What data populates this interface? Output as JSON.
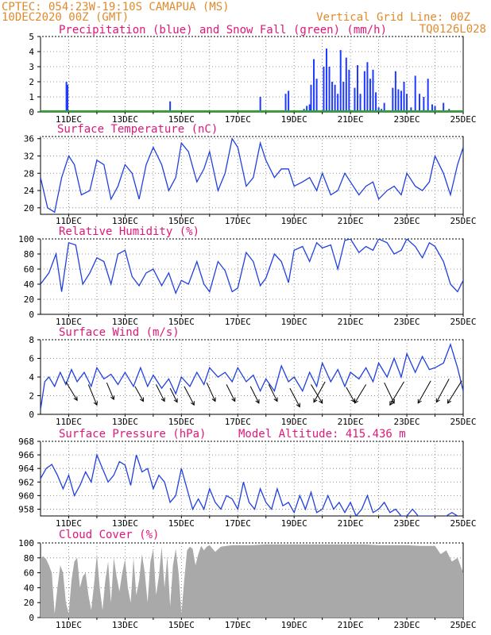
{
  "header": {
    "station_line": "CPTEC:  054:23W-19:10S  CAMAPUA (MS)",
    "date_line": "10DEC2020 00Z (GMT)",
    "grid_note": "Vertical Grid Line: 00Z",
    "code": "TQ0126L028"
  },
  "x_axis": {
    "labels": [
      "11DEC",
      "13DEC",
      "15DEC",
      "17DEC",
      "19DEC",
      "21DEC",
      "23DEC",
      "25DEC"
    ],
    "start_day": 10,
    "end_day": 25
  },
  "colors": {
    "precip": "#1f3bff",
    "snow": "#22aa22",
    "line": "#2040e0",
    "cloud": "#a9a9a9",
    "wind_arrow": "#000000"
  },
  "chart_data": [
    {
      "id": "precip",
      "type": "bar",
      "title": "Precipitation (blue) and Snow Fall (green) (mm/h)",
      "ylim": [
        0,
        5
      ],
      "yticks": [
        0,
        1,
        2,
        3,
        4,
        5
      ],
      "bar_width_days": 0.03,
      "x": [
        10.92,
        10.96,
        14.6,
        17.8,
        18.7,
        18.8,
        19.35,
        19.45,
        19.55,
        19.6,
        19.7,
        19.8,
        20.05,
        20.15,
        20.25,
        20.35,
        20.45,
        20.55,
        20.65,
        20.75,
        20.85,
        20.95,
        21.15,
        21.25,
        21.35,
        21.5,
        21.6,
        21.7,
        21.8,
        21.9,
        22.0,
        22.1,
        22.2,
        22.5,
        22.6,
        22.7,
        22.8,
        22.9,
        23.0,
        23.15,
        23.3,
        23.45,
        23.6,
        23.75,
        23.9,
        24.0,
        24.3,
        24.5
      ],
      "values": [
        2.0,
        1.8,
        0.7,
        1.0,
        1.2,
        1.4,
        0.2,
        0.4,
        0.5,
        1.8,
        3.5,
        2.2,
        3.0,
        4.2,
        3.0,
        2.0,
        1.8,
        1.2,
        4.1,
        2.0,
        3.6,
        2.8,
        1.6,
        3.1,
        1.2,
        2.7,
        3.3,
        2.2,
        2.8,
        1.3,
        0.3,
        0.2,
        0.6,
        1.6,
        2.7,
        1.5,
        1.4,
        2.0,
        1.2,
        0.3,
        2.4,
        1.2,
        1.0,
        2.2,
        0.5,
        0.4,
        0.6,
        0.2
      ],
      "snow": 0
    },
    {
      "id": "temp",
      "type": "line",
      "title": "Surface Temperature (nC)",
      "ylim": [
        18.5,
        36.5
      ],
      "yticks": [
        20,
        24,
        28,
        32,
        36
      ],
      "x": [
        10.0,
        10.25,
        10.5,
        10.75,
        11.0,
        11.2,
        11.45,
        11.75,
        12.0,
        12.25,
        12.5,
        12.75,
        13.0,
        13.25,
        13.5,
        13.75,
        14.0,
        14.3,
        14.55,
        14.8,
        15.0,
        15.25,
        15.55,
        15.8,
        16.0,
        16.3,
        16.55,
        16.8,
        17.0,
        17.3,
        17.55,
        17.8,
        18.0,
        18.3,
        18.55,
        18.8,
        19.0,
        19.3,
        19.55,
        19.8,
        20.0,
        20.3,
        20.55,
        20.8,
        21.0,
        21.3,
        21.55,
        21.8,
        22.0,
        22.3,
        22.55,
        22.8,
        23.0,
        23.3,
        23.55,
        23.8,
        24.0,
        24.3,
        24.55,
        24.8,
        25.0
      ],
      "values": [
        27,
        20,
        19,
        27,
        32,
        30,
        23,
        24,
        31,
        30,
        22,
        25,
        30,
        28,
        22,
        30,
        34,
        30,
        24,
        27,
        35,
        33,
        26,
        29,
        33,
        24,
        28,
        36,
        34,
        25,
        27,
        35,
        31,
        27,
        29,
        29,
        25,
        26,
        27,
        24,
        28,
        23,
        24,
        28,
        26,
        23,
        25,
        26,
        22,
        24,
        25,
        23,
        28,
        25,
        24,
        26,
        32,
        28,
        23,
        30,
        34
      ]
    },
    {
      "id": "rh",
      "type": "line",
      "title": "Relative Humidity (%)",
      "ylim": [
        0,
        100
      ],
      "yticks": [
        0,
        20,
        40,
        60,
        80,
        100
      ],
      "x": [
        10.0,
        10.3,
        10.55,
        10.75,
        11.0,
        11.25,
        11.5,
        11.75,
        12.0,
        12.25,
        12.5,
        12.75,
        13.0,
        13.25,
        13.5,
        13.75,
        14.0,
        14.3,
        14.55,
        14.8,
        15.0,
        15.25,
        15.55,
        15.8,
        16.0,
        16.3,
        16.55,
        16.8,
        17.0,
        17.3,
        17.55,
        17.8,
        18.0,
        18.3,
        18.55,
        18.8,
        19.0,
        19.3,
        19.55,
        19.8,
        20.0,
        20.3,
        20.55,
        20.8,
        21.0,
        21.3,
        21.55,
        21.8,
        22.0,
        22.3,
        22.55,
        22.8,
        23.0,
        23.3,
        23.55,
        23.8,
        24.0,
        24.3,
        24.55,
        24.8,
        25.0
      ],
      "values": [
        40,
        55,
        80,
        30,
        95,
        92,
        40,
        55,
        75,
        70,
        40,
        80,
        85,
        50,
        38,
        55,
        60,
        38,
        55,
        28,
        45,
        40,
        70,
        40,
        30,
        70,
        58,
        30,
        35,
        82,
        70,
        38,
        48,
        80,
        70,
        42,
        85,
        90,
        70,
        95,
        88,
        92,
        60,
        98,
        100,
        82,
        90,
        85,
        100,
        95,
        80,
        85,
        100,
        90,
        75,
        95,
        90,
        70,
        40,
        30,
        45
      ]
    },
    {
      "id": "wind",
      "type": "line",
      "title": "Surface Wind (m/s)",
      "ylim": [
        0,
        8
      ],
      "yticks": [
        0,
        2,
        4,
        6,
        8
      ],
      "x": [
        10.0,
        10.15,
        10.3,
        10.5,
        10.7,
        10.9,
        11.1,
        11.3,
        11.55,
        11.8,
        12.0,
        12.25,
        12.5,
        12.75,
        13.0,
        13.3,
        13.55,
        13.8,
        14.0,
        14.3,
        14.55,
        14.8,
        15.0,
        15.3,
        15.55,
        15.8,
        16.0,
        16.3,
        16.55,
        16.8,
        17.0,
        17.3,
        17.55,
        17.8,
        18.0,
        18.3,
        18.55,
        18.8,
        19.0,
        19.3,
        19.55,
        19.8,
        20.0,
        20.3,
        20.55,
        20.8,
        21.0,
        21.3,
        21.55,
        21.8,
        22.0,
        22.3,
        22.55,
        22.8,
        23.0,
        23.3,
        23.55,
        23.8,
        24.0,
        24.3,
        24.55,
        24.8,
        25.0
      ],
      "values": [
        0.5,
        3.5,
        4.0,
        3.0,
        4.5,
        3.2,
        4.8,
        3.5,
        4.5,
        3.0,
        5.0,
        3.8,
        4.3,
        3.2,
        4.5,
        3.0,
        5.0,
        3.0,
        4.2,
        2.8,
        3.8,
        2.2,
        4.0,
        3.0,
        4.5,
        3.2,
        5.0,
        4.0,
        4.5,
        3.5,
        5.0,
        3.5,
        4.2,
        2.5,
        3.8,
        2.5,
        5.2,
        3.5,
        4.0,
        2.5,
        4.5,
        3.0,
        5.5,
        3.5,
        4.8,
        3.0,
        4.5,
        3.8,
        5.0,
        3.5,
        5.5,
        4.0,
        6.0,
        4.0,
        6.5,
        4.5,
        6.2,
        4.8,
        5.0,
        5.5,
        7.5,
        5.0,
        2.5
      ],
      "arrows": [
        {
          "x": 10.9,
          "y": 3.5,
          "dx": 0.4,
          "dy": -2.0
        },
        {
          "x": 11.7,
          "y": 3.2,
          "dx": 0.3,
          "dy": -2.2
        },
        {
          "x": 12.35,
          "y": 3.4,
          "dx": 0.25,
          "dy": -1.8
        },
        {
          "x": 13.35,
          "y": 3.0,
          "dx": 0.3,
          "dy": -1.6
        },
        {
          "x": 14.1,
          "y": 3.2,
          "dx": 0.3,
          "dy": -1.8
        },
        {
          "x": 14.6,
          "y": 2.8,
          "dx": 0.25,
          "dy": -1.5
        },
        {
          "x": 15.1,
          "y": 3.0,
          "dx": 0.35,
          "dy": -2.0
        },
        {
          "x": 15.9,
          "y": 3.4,
          "dx": 0.3,
          "dy": -2.0
        },
        {
          "x": 16.6,
          "y": 3.2,
          "dx": 0.3,
          "dy": -1.8
        },
        {
          "x": 17.45,
          "y": 3.0,
          "dx": 0.3,
          "dy": -1.8
        },
        {
          "x": 18.1,
          "y": 3.2,
          "dx": 0.3,
          "dy": -1.8
        },
        {
          "x": 18.85,
          "y": 2.8,
          "dx": 0.35,
          "dy": -2.0
        },
        {
          "x": 19.6,
          "y": 3.2,
          "dx": 0.4,
          "dy": -2.0
        },
        {
          "x": 20.1,
          "y": 3.5,
          "dx": -0.4,
          "dy": -2.2
        },
        {
          "x": 20.85,
          "y": 2.9,
          "dx": 0.3,
          "dy": -1.6
        },
        {
          "x": 21.55,
          "y": 3.2,
          "dx": -0.4,
          "dy": -2.0
        },
        {
          "x": 22.2,
          "y": 3.4,
          "dx": 0.35,
          "dy": -2.2
        },
        {
          "x": 22.9,
          "y": 3.5,
          "dx": -0.5,
          "dy": -2.5
        },
        {
          "x": 23.85,
          "y": 3.6,
          "dx": -0.45,
          "dy": -2.4
        },
        {
          "x": 24.5,
          "y": 3.8,
          "dx": -0.45,
          "dy": -2.5
        },
        {
          "x": 24.95,
          "y": 3.6,
          "dx": -0.5,
          "dy": -2.4
        }
      ]
    },
    {
      "id": "pressure",
      "type": "line",
      "title": "Surface Pressure (hPa)",
      "subtitle": "Model Altitude: 415.436 m",
      "ylim": [
        957,
        968
      ],
      "yticks": [
        958,
        960,
        962,
        964,
        966,
        968
      ],
      "x": [
        10.0,
        10.2,
        10.4,
        10.6,
        10.8,
        11.0,
        11.2,
        11.4,
        11.6,
        11.8,
        12.0,
        12.2,
        12.4,
        12.6,
        12.8,
        13.0,
        13.2,
        13.4,
        13.6,
        13.8,
        14.0,
        14.2,
        14.4,
        14.6,
        14.8,
        15.0,
        15.2,
        15.4,
        15.6,
        15.8,
        16.0,
        16.2,
        16.4,
        16.6,
        16.8,
        17.0,
        17.2,
        17.4,
        17.6,
        17.8,
        18.0,
        18.2,
        18.4,
        18.6,
        18.8,
        19.0,
        19.2,
        19.4,
        19.6,
        19.8,
        20.0,
        20.2,
        20.4,
        20.6,
        20.8,
        21.0,
        21.2,
        21.4,
        21.6,
        21.8,
        22.0,
        22.2,
        22.4,
        22.6,
        22.8,
        23.0,
        23.2,
        23.4,
        23.6,
        23.8,
        24.0,
        24.2,
        24.4,
        24.6,
        24.8,
        25.0
      ],
      "values": [
        962.5,
        964,
        964.6,
        963,
        961,
        963,
        960,
        961.5,
        963.5,
        962,
        966,
        964,
        962,
        963,
        965,
        964.5,
        961.5,
        966,
        963.5,
        964,
        961,
        963,
        962,
        959,
        960,
        964,
        961,
        958,
        959.5,
        958,
        961,
        959,
        958,
        960,
        959.5,
        958,
        962,
        959,
        958,
        961,
        959,
        958,
        961,
        958.5,
        959,
        957.5,
        960,
        958,
        960.5,
        957.5,
        958,
        960,
        958,
        959,
        957.5,
        959,
        957,
        958,
        960,
        957.5,
        958,
        959,
        957.5,
        958,
        957,
        957,
        958,
        957,
        957,
        957,
        957,
        956.5,
        957,
        957.5,
        957,
        956
      ]
    },
    {
      "id": "cloud",
      "type": "area",
      "title": "Cloud Cover (%)",
      "ylim": [
        0,
        100
      ],
      "yticks": [
        0,
        20,
        40,
        60,
        80,
        100
      ],
      "x": [
        10.0,
        10.1,
        10.2,
        10.3,
        10.4,
        10.5,
        10.6,
        10.7,
        10.8,
        10.9,
        11.0,
        11.1,
        11.2,
        11.3,
        11.4,
        11.5,
        11.6,
        11.7,
        11.8,
        11.9,
        12.0,
        12.1,
        12.2,
        12.3,
        12.4,
        12.5,
        12.6,
        12.7,
        12.8,
        12.9,
        13.0,
        13.1,
        13.2,
        13.3,
        13.4,
        13.5,
        13.6,
        13.7,
        13.8,
        13.9,
        14.0,
        14.1,
        14.2,
        14.3,
        14.4,
        14.5,
        14.6,
        14.7,
        14.8,
        14.9,
        15.0,
        15.1,
        15.2,
        15.3,
        15.4,
        15.5,
        15.6,
        15.7,
        15.8,
        15.9,
        16.0,
        16.2,
        16.4,
        16.6,
        16.8,
        17.0,
        17.5,
        18.0,
        18.5,
        19.0,
        19.5,
        20.0,
        20.5,
        21.0,
        21.5,
        22.0,
        22.5,
        23.0,
        23.5,
        24.0,
        24.2,
        24.4,
        24.6,
        24.8,
        25.0
      ],
      "values": [
        80,
        82,
        78,
        70,
        60,
        5,
        40,
        70,
        60,
        20,
        5,
        50,
        75,
        80,
        40,
        55,
        60,
        30,
        10,
        45,
        85,
        40,
        10,
        50,
        75,
        20,
        80,
        55,
        35,
        60,
        78,
        40,
        20,
        80,
        30,
        50,
        85,
        60,
        20,
        75,
        92,
        30,
        55,
        95,
        40,
        82,
        15,
        70,
        92,
        60,
        5,
        50,
        90,
        95,
        92,
        70,
        85,
        96,
        90,
        95,
        97,
        88,
        95,
        96,
        97,
        97,
        97,
        98,
        98,
        98,
        98,
        98,
        98,
        98,
        98,
        97,
        97,
        97,
        96,
        96,
        85,
        90,
        75,
        80,
        60
      ]
    }
  ]
}
